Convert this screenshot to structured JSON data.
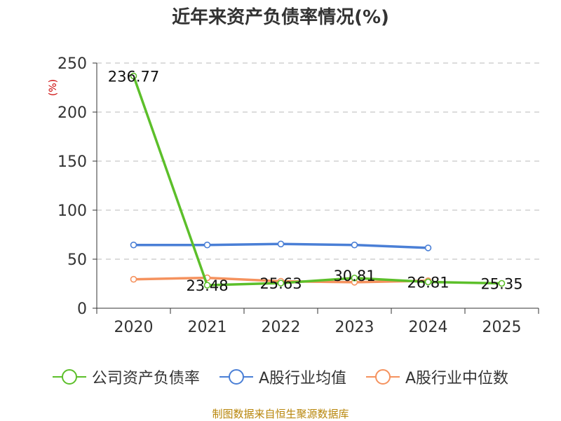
{
  "chart_data": {
    "type": "line",
    "title": "近年来资产负债率情况(%)",
    "ylabel": "(%)",
    "xlabel": "",
    "categories": [
      "2020",
      "2021",
      "2022",
      "2023",
      "2024",
      "2025"
    ],
    "ylim": [
      0,
      250
    ],
    "yticks": [
      0,
      50,
      100,
      150,
      200,
      250
    ],
    "grid": true,
    "legend_position": "bottom",
    "series": [
      {
        "name": "公司资产负债率",
        "color": "#5cbf2a",
        "values": [
          236.77,
          23.48,
          25.63,
          30.81,
          26.81,
          25.35
        ],
        "labels": [
          "236.77",
          "23.48",
          "25.63",
          "30.81",
          "26.81",
          "25.35"
        ]
      },
      {
        "name": "A股行业均值",
        "color": "#4a7fd6",
        "values": [
          64.5,
          64.5,
          65.5,
          64.5,
          61.5,
          null
        ]
      },
      {
        "name": "A股行业中位数",
        "color": "#f5925e",
        "values": [
          29.5,
          31.0,
          27.5,
          26.5,
          28.0,
          null
        ]
      }
    ]
  },
  "source": "制图数据来自恒生聚源数据库"
}
